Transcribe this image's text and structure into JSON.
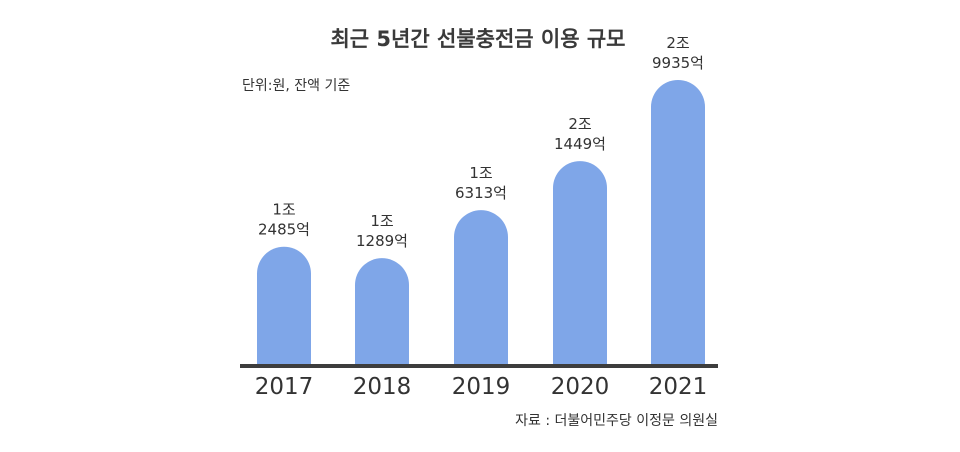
{
  "chart_data": {
    "type": "bar",
    "title": "최근 5년간 선불충전금 이용 규모",
    "unit_note": "단위:원, 잔액 기준",
    "source": "자료 : 더불어민주당 이정문 의원실",
    "categories": [
      "2017",
      "2018",
      "2019",
      "2020",
      "2021"
    ],
    "values": [
      12485,
      11289,
      16313,
      21449,
      29935
    ],
    "value_unit": "억원",
    "data_labels": [
      {
        "line1": "1조",
        "line2": "2485억"
      },
      {
        "line1": "1조",
        "line2": "1289억"
      },
      {
        "line1": "1조",
        "line2": "6313억"
      },
      {
        "line1": "2조",
        "line2": "1449억"
      },
      {
        "line1": "2조",
        "line2": "9935억"
      }
    ],
    "ylim": [
      0,
      29935
    ],
    "grid": false,
    "bar_color": "#7fa6e8",
    "axis_color": "#3d3d3d"
  }
}
